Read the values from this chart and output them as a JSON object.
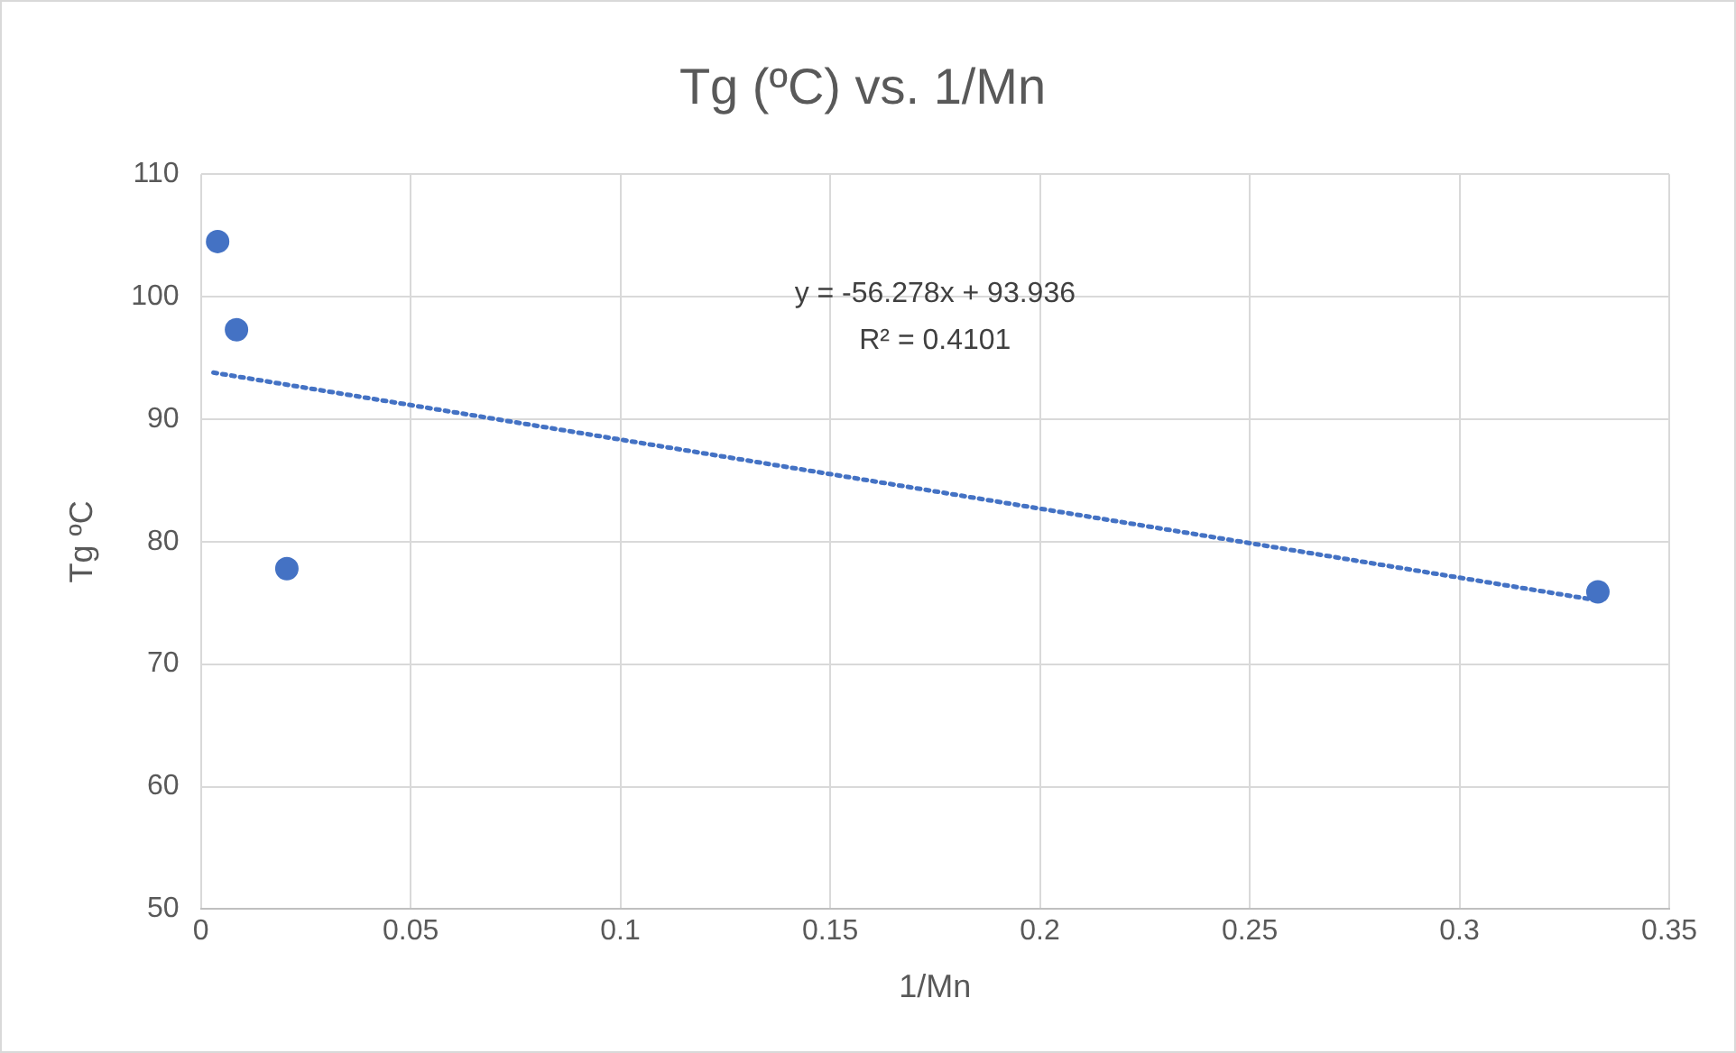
{
  "chart_data": {
    "type": "scatter",
    "title": "Tg (ºC) vs. 1/Mn",
    "xlabel": "1/Mn",
    "ylabel": "Tg ºC",
    "series": [
      {
        "type": "scatter",
        "color": "#4472c4",
        "x": [
          0.004,
          0.0085,
          0.0205,
          0.333
        ],
        "values": [
          104.5,
          97.3,
          77.8,
          75.9
        ],
        "marker": "circle"
      },
      {
        "type": "line",
        "color": "#4472c4",
        "x": [
          0.003,
          0.333
        ],
        "values": [
          93.8,
          75.2
        ],
        "line_style": "dotted",
        "marker": "none"
      }
    ],
    "annotations": [
      "y = -56.278x + 93.936",
      "R² = 0.4101"
    ],
    "xlim": [
      0,
      0.35
    ],
    "xticks": [
      0,
      0.05,
      0.1,
      0.15,
      0.2,
      0.25,
      0.3,
      0.35
    ],
    "ylim": [
      50,
      110
    ],
    "yticks": [
      50,
      60,
      70,
      80,
      90,
      100,
      110
    ],
    "grid": true,
    "legend": false
  }
}
